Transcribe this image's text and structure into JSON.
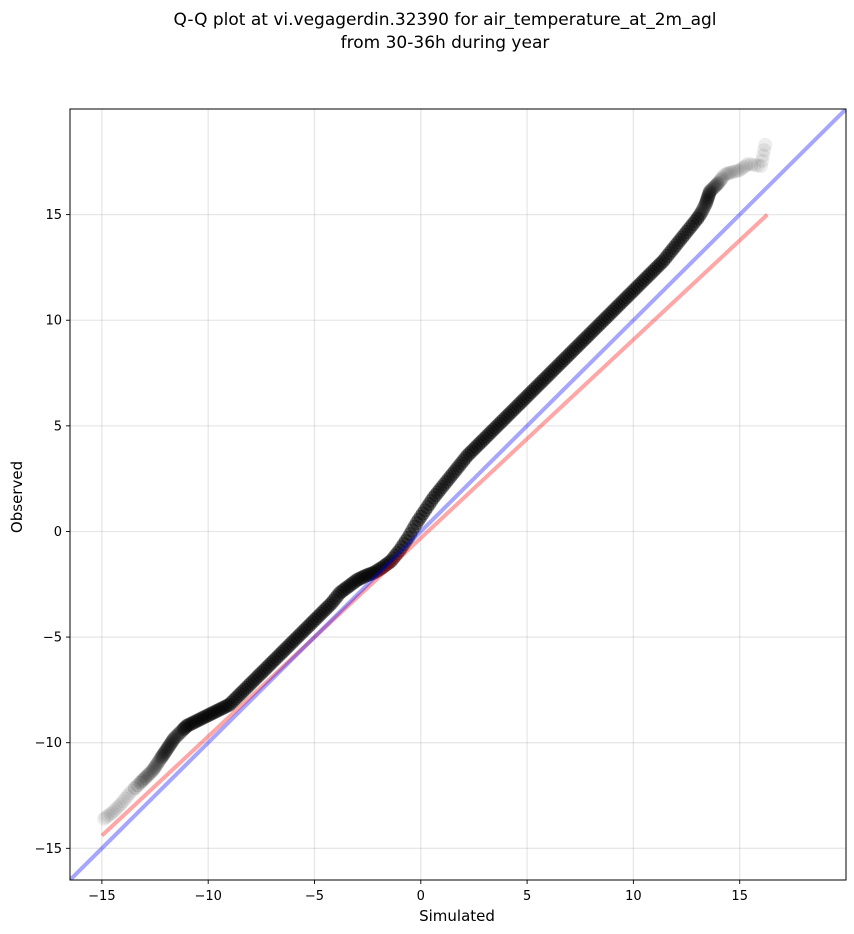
{
  "chart_data": {
    "type": "scatter",
    "title": "Q-Q plot at vi.vegagerdin.32390 for air_temperature_at_2m_agl",
    "subtitle": "from 30-36h during year",
    "xlabel": "Simulated",
    "ylabel": "Observed",
    "xlim": [
      -16.5,
      20.0
    ],
    "ylim": [
      -16.5,
      20.0
    ],
    "xticks": [
      -15,
      -10,
      -5,
      0,
      5,
      10,
      15
    ],
    "yticks": [
      -15,
      -10,
      -5,
      0,
      5,
      10,
      15
    ],
    "grid": true,
    "quantile_points": {
      "x": [
        -14.9,
        -14.5,
        -14.1,
        -13.7,
        -13.2,
        -12.9,
        -12.6,
        -12.4,
        -12.2,
        -12.0,
        -11.8,
        -11.6,
        -11.3,
        -11.0,
        -10.6,
        -10.2,
        -9.8,
        -9.4,
        -9.0,
        -8.6,
        -8.2,
        -7.8,
        -7.4,
        -7.0,
        -6.6,
        -6.2,
        -5.8,
        -5.4,
        -5.0,
        -4.6,
        -4.2,
        -3.8,
        -3.4,
        -3.0,
        -2.6,
        -2.2,
        -1.8,
        -1.4,
        -1.0,
        -0.6,
        -0.2,
        0.2,
        0.6,
        1.0,
        1.4,
        1.8,
        2.2,
        2.6,
        3.0,
        3.4,
        3.8,
        4.2,
        4.6,
        5.0,
        5.4,
        5.8,
        6.2,
        6.6,
        7.0,
        7.4,
        7.8,
        8.2,
        8.6,
        9.0,
        9.4,
        9.8,
        10.2,
        10.6,
        11.0,
        11.4,
        11.8,
        12.2,
        12.6,
        13.0,
        13.2,
        13.4,
        13.5,
        13.6,
        13.8,
        14.0,
        14.3,
        14.6,
        15.0,
        15.4,
        16.0,
        16.2
      ],
      "y": [
        -13.6,
        -13.3,
        -12.9,
        -12.4,
        -11.9,
        -11.6,
        -11.3,
        -11.0,
        -10.7,
        -10.4,
        -10.1,
        -9.8,
        -9.5,
        -9.2,
        -9.0,
        -8.8,
        -8.6,
        -8.4,
        -8.2,
        -7.8,
        -7.4,
        -7.0,
        -6.6,
        -6.2,
        -5.8,
        -5.4,
        -5.0,
        -4.6,
        -4.2,
        -3.8,
        -3.4,
        -2.9,
        -2.6,
        -2.3,
        -2.1,
        -1.95,
        -1.7,
        -1.4,
        -0.9,
        -0.3,
        0.4,
        1.0,
        1.6,
        2.1,
        2.6,
        3.1,
        3.6,
        4.0,
        4.4,
        4.8,
        5.2,
        5.6,
        6.0,
        6.4,
        6.8,
        7.2,
        7.6,
        8.0,
        8.4,
        8.8,
        9.2,
        9.6,
        10.0,
        10.4,
        10.8,
        11.2,
        11.6,
        12.0,
        12.4,
        12.8,
        13.3,
        13.8,
        14.3,
        14.8,
        15.1,
        15.5,
        15.8,
        16.1,
        16.3,
        16.5,
        16.9,
        17.0,
        17.1,
        17.4,
        17.3,
        18.3
      ],
      "color": "#000000"
    },
    "series": [
      {
        "x": [
          -15.0,
          16.3
        ],
        "y": [
          -14.4,
          15.0
        ],
        "color": "#ff0000",
        "opacity": 0.35
      },
      {
        "x": [
          -16.5,
          20.0
        ],
        "y": [
          -16.5,
          20.0
        ],
        "color": "#0000ff",
        "opacity": 0.35
      }
    ]
  }
}
